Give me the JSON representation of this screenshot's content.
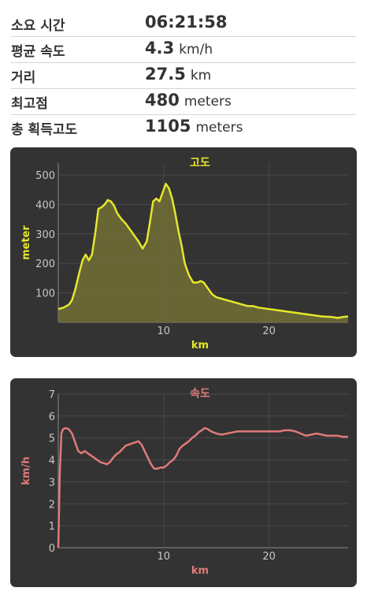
{
  "stats": [
    {
      "label": "소요 시간",
      "value": "06:21:58",
      "unit": ""
    },
    {
      "label": "평균 속도",
      "value": "4.3",
      "unit": "km/h"
    },
    {
      "label": "거리",
      "value": "27.5",
      "unit": "km"
    },
    {
      "label": "최고점",
      "value": "480",
      "unit": "meters"
    },
    {
      "label": "총 획득고도",
      "value": "1105",
      "unit": "meters"
    }
  ],
  "chart_data": [
    {
      "type": "area",
      "title": "고도",
      "xlabel": "km",
      "ylabel": "meter",
      "xlim": [
        0,
        27.5
      ],
      "ylim": [
        0,
        540
      ],
      "x_ticks": [
        10,
        20
      ],
      "y_ticks": [
        100,
        200,
        300,
        400,
        500
      ],
      "grid": true,
      "color": "#e6e62e",
      "fill": "#6e6b35",
      "x": [
        0,
        0.5,
        1,
        1.3,
        1.6,
        2,
        2.3,
        2.6,
        2.9,
        3.2,
        3.5,
        3.8,
        4.1,
        4.4,
        4.7,
        5.0,
        5.3,
        5.6,
        6.0,
        6.4,
        6.8,
        7.2,
        7.6,
        8.0,
        8.4,
        8.7,
        9.0,
        9.3,
        9.6,
        9.9,
        10.2,
        10.5,
        10.8,
        11.1,
        11.4,
        11.7,
        12.0,
        12.4,
        12.8,
        13.2,
        13.5,
        13.8,
        14.2,
        14.6,
        15.0,
        15.5,
        16.0,
        16.5,
        17.0,
        17.5,
        18.0,
        18.5,
        19.0,
        20.0,
        21.0,
        22.0,
        23.0,
        24.0,
        25.0,
        26.0,
        26.5,
        27.0,
        27.5
      ],
      "values": [
        45,
        50,
        60,
        75,
        110,
        170,
        210,
        230,
        210,
        230,
        300,
        385,
        390,
        400,
        415,
        410,
        395,
        370,
        350,
        335,
        315,
        295,
        275,
        250,
        275,
        340,
        410,
        420,
        410,
        440,
        470,
        455,
        420,
        370,
        310,
        260,
        200,
        160,
        135,
        135,
        140,
        135,
        115,
        95,
        85,
        80,
        75,
        70,
        65,
        60,
        55,
        55,
        50,
        45,
        40,
        35,
        30,
        25,
        20,
        18,
        15,
        18,
        20
      ]
    },
    {
      "type": "line",
      "title": "속도",
      "xlabel": "km",
      "ylabel": "km/h",
      "xlim": [
        0,
        27.5
      ],
      "ylim": [
        0,
        7
      ],
      "x_ticks": [
        10,
        20
      ],
      "y_ticks": [
        0,
        1,
        2,
        3,
        4,
        5,
        6,
        7
      ],
      "grid": true,
      "color": "#e07a7a",
      "x": [
        0,
        0.15,
        0.3,
        0.45,
        0.7,
        1.0,
        1.3,
        1.6,
        1.9,
        2.2,
        2.5,
        2.8,
        3.1,
        3.4,
        3.7,
        4.0,
        4.3,
        4.6,
        4.9,
        5.2,
        5.5,
        5.8,
        6.1,
        6.4,
        6.7,
        7.0,
        7.3,
        7.6,
        7.9,
        8.2,
        8.5,
        8.8,
        9.1,
        9.4,
        9.7,
        10.0,
        10.3,
        10.6,
        10.9,
        11.2,
        11.5,
        11.8,
        12.1,
        12.4,
        12.7,
        13.0,
        13.3,
        13.6,
        13.9,
        14.2,
        14.5,
        15.0,
        15.5,
        16.0,
        16.5,
        17.0,
        17.5,
        18.0,
        18.5,
        19.0,
        19.5,
        20.0,
        20.5,
        21.0,
        21.5,
        22.0,
        22.5,
        23.0,
        23.5,
        24.0,
        24.5,
        25.0,
        25.5,
        26.0,
        26.5,
        27.0,
        27.5
      ],
      "values": [
        0,
        3.5,
        5.2,
        5.4,
        5.45,
        5.4,
        5.2,
        4.8,
        4.4,
        4.3,
        4.4,
        4.3,
        4.2,
        4.1,
        4.0,
        3.9,
        3.85,
        3.8,
        3.9,
        4.1,
        4.25,
        4.35,
        4.5,
        4.65,
        4.7,
        4.75,
        4.8,
        4.85,
        4.7,
        4.4,
        4.1,
        3.8,
        3.6,
        3.6,
        3.65,
        3.65,
        3.75,
        3.9,
        4.0,
        4.2,
        4.5,
        4.65,
        4.75,
        4.85,
        5.0,
        5.1,
        5.25,
        5.35,
        5.45,
        5.4,
        5.3,
        5.2,
        5.15,
        5.2,
        5.25,
        5.3,
        5.3,
        5.3,
        5.3,
        5.3,
        5.3,
        5.3,
        5.3,
        5.3,
        5.35,
        5.35,
        5.3,
        5.2,
        5.1,
        5.15,
        5.2,
        5.15,
        5.1,
        5.1,
        5.1,
        5.05,
        5.05
      ]
    }
  ]
}
